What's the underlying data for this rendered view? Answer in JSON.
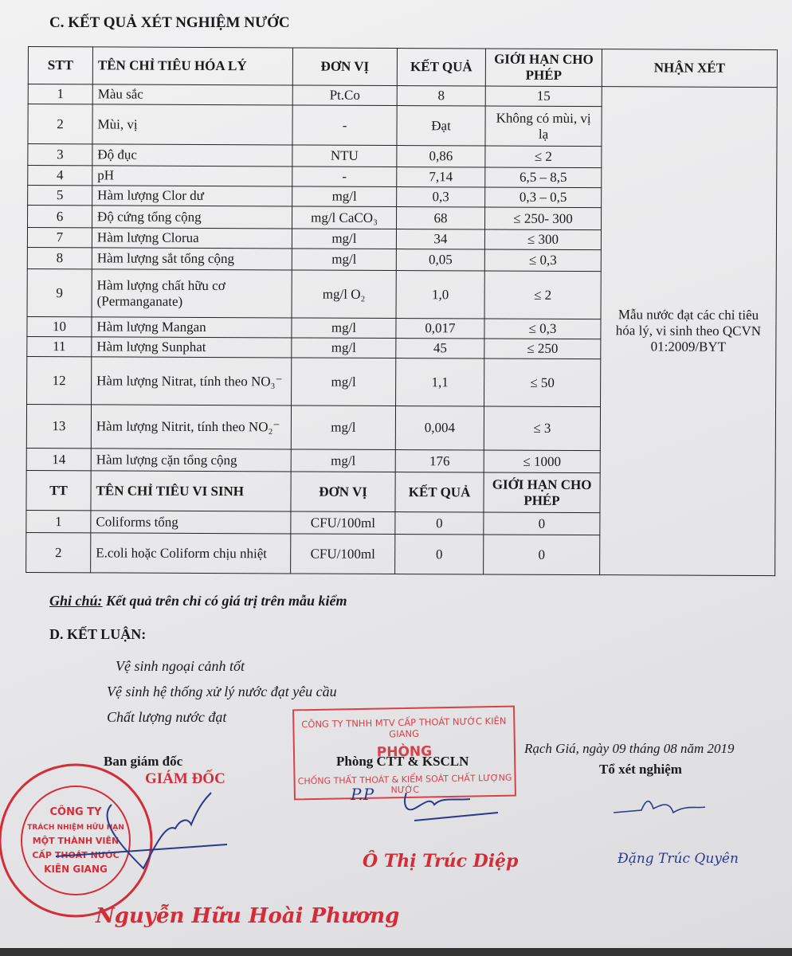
{
  "section_c_title": "C. KẾT QUẢ XÉT NGHIỆM NƯỚC",
  "chem_headers": [
    "STT",
    "TÊN CHỈ TIÊU HÓA LÝ",
    "ĐƠN VỊ",
    "KẾT QUẢ",
    "GIỚI HẠN CHO PHÉP",
    "NHẬN XÉT"
  ],
  "chem_rows": [
    {
      "stt": "1",
      "name": "Màu sắc",
      "unit": "Pt.Co",
      "result": "8",
      "limit": "15"
    },
    {
      "stt": "2",
      "name": "Mùi, vị",
      "unit": "-",
      "result": "Đạt",
      "limit": "Không có mùi, vị lạ"
    },
    {
      "stt": "3",
      "name": "Độ đục",
      "unit": "NTU",
      "result": "0,86",
      "limit": "≤ 2"
    },
    {
      "stt": "4",
      "name": "pH",
      "unit": "-",
      "result": "7,14",
      "limit": "6,5 – 8,5"
    },
    {
      "stt": "5",
      "name": "Hàm lượng Clor dư",
      "unit": "mg/l",
      "result": "0,3",
      "limit": "0,3 – 0,5"
    },
    {
      "stt": "6",
      "name": "Độ cứng tổng cộng",
      "unit": "mg/l CaCO₃",
      "result": "68",
      "limit": "≤ 250- 300"
    },
    {
      "stt": "7",
      "name": "Hàm lượng Clorua",
      "unit": "mg/l",
      "result": "34",
      "limit": "≤ 300"
    },
    {
      "stt": "8",
      "name": "Hàm lượng sắt tổng cộng",
      "unit": "mg/l",
      "result": "0,05",
      "limit": "≤ 0,3"
    },
    {
      "stt": "9",
      "name": "Hàm lượng chất hữu cơ (Permanganate)",
      "unit": "mg/l O₂",
      "result": "1,0",
      "limit": "≤ 2"
    },
    {
      "stt": "10",
      "name": "Hàm lượng Mangan",
      "unit": "mg/l",
      "result": "0,017",
      "limit": "≤ 0,3"
    },
    {
      "stt": "11",
      "name": "Hàm lượng Sunphat",
      "unit": "mg/l",
      "result": "45",
      "limit": "≤ 250"
    },
    {
      "stt": "12",
      "name": "Hàm lượng Nitrat, tính theo NO₃⁻",
      "unit": "mg/l",
      "result": "1,1",
      "limit": "≤ 50"
    },
    {
      "stt": "13",
      "name": "Hàm lượng Nitrit, tính theo NO₂⁻",
      "unit": "mg/l",
      "result": "0,004",
      "limit": "≤ 3"
    },
    {
      "stt": "14",
      "name": "Hàm lượng cặn tổng cộng",
      "unit": "mg/l",
      "result": "176",
      "limit": "≤ 1000"
    }
  ],
  "comment": "Mẫu nước đạt các chỉ tiêu hóa lý, vi sinh theo QCVN 01:2009/BYT",
  "micro_headers": [
    "TT",
    "TÊN CHỈ TIÊU VI SINH",
    "ĐƠN VỊ",
    "KẾT QUẢ",
    "GIỚI HẠN CHO PHÉP"
  ],
  "micro_rows": [
    {
      "stt": "1",
      "name": "Coliforms tổng",
      "unit": "CFU/100ml",
      "result": "0",
      "limit": "0"
    },
    {
      "stt": "2",
      "name": "E.coli hoặc Coliform chịu nhiệt",
      "unit": "CFU/100ml",
      "result": "0",
      "limit": "0"
    }
  ],
  "note_label": "Ghi chú:",
  "note_text": " Kết quả trên chỉ có giá trị trên mẫu kiểm",
  "section_d_title": "D. KẾT LUẬN:",
  "conclusions": [
    "Vệ sinh ngoại cảnh tốt",
    "Vệ sinh hệ thống xử lý nước đạt yêu cầu",
    "Chất lượng nước đạt"
  ],
  "place_date": "Rạch Giá, ngày 09 tháng 08 năm 2019",
  "signers": {
    "board": {
      "title": "Ban giám đốc",
      "role": "GIÁM ĐỐC",
      "name": "Nguyễn Hữu Hoài Phương"
    },
    "dept": {
      "title": "Phòng CTT & KSCLN",
      "prefix": "P.P",
      "name": "Ô Thị Trúc Diệp"
    },
    "lab": {
      "title": "Tổ xét nghiệm",
      "name": "Đặng Trúc Quyên"
    }
  },
  "stamp_box": {
    "line1": "CÔNG TY TNHH MTV CẤP THOÁT NƯỚC KIÊN GIANG",
    "line2": "PHÒNG",
    "line3": "CHỐNG THẤT THOÁT & KIỂM SOÁT CHẤT LƯỢNG NƯỚC"
  },
  "circle_stamp": {
    "ring": "S.Đ.K.K.D : 1700105655 · C.T.T.N.H.H · TP. RẠCH GIÁ - T. KIÊN GIANG",
    "center": [
      "CÔNG TY",
      "TRÁCH NHIỆM HỮU HẠN",
      "MỘT THÀNH VIÊN",
      "CẤP THOÁT NƯỚC",
      "KIÊN GIANG"
    ]
  },
  "colors": {
    "stamp_red": "#d42d3a",
    "ink_blue": "#2a3a8a",
    "paper": "#e9e9eb"
  }
}
